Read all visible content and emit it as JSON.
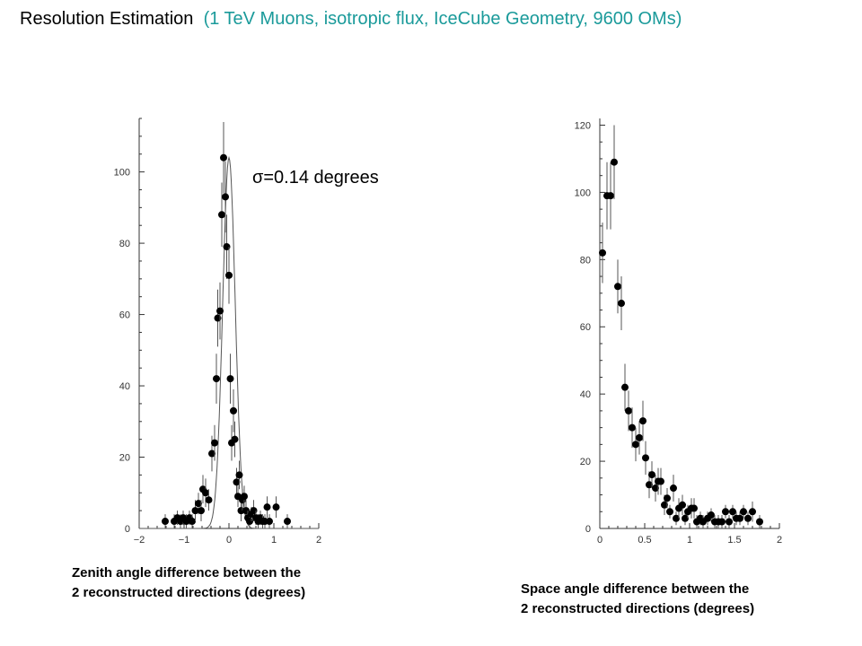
{
  "title": {
    "main": "Resolution Estimation",
    "sub": "(1 TeV Muons, isotropic flux, IceCube Geometry, 9600 OMs)"
  },
  "annotation": "σ=0.14 degrees",
  "captions": {
    "left_line1": "Zenith angle difference between the",
    "left_line2": "2 reconstructed directions (degrees)",
    "right_line1": "Space angle difference between the",
    "right_line2": "2 reconstructed directions (degrees)"
  },
  "colors": {
    "subtitle": "#1a9a9a",
    "points": "#000000",
    "axes": "#333333"
  },
  "chart_data": [
    {
      "type": "scatter",
      "name": "zenith",
      "xlim": [
        -2,
        2
      ],
      "ylim": [
        0,
        115
      ],
      "xticks": [
        -2,
        -1,
        0,
        1,
        2
      ],
      "yticks": [
        0,
        20,
        40,
        60,
        80,
        100
      ],
      "xtick_labels": [
        "−2",
        "−1",
        "0",
        "1",
        "2"
      ],
      "ytick_labels": [
        "0",
        "20",
        "40",
        "60",
        "80",
        "100"
      ],
      "error_bars": true,
      "fit_curve": true,
      "x": [
        -1.42,
        -1.22,
        -1.15,
        -1.08,
        -1.02,
        -0.95,
        -0.88,
        -0.82,
        -0.75,
        -0.68,
        -0.62,
        -0.58,
        -0.52,
        -0.45,
        -0.38,
        -0.32,
        -0.28,
        -0.25,
        -0.2,
        -0.16,
        -0.12,
        -0.08,
        -0.05,
        0.0,
        0.03,
        0.06,
        0.1,
        0.13,
        0.17,
        0.2,
        0.23,
        0.27,
        0.3,
        0.34,
        0.38,
        0.42,
        0.46,
        0.5,
        0.55,
        0.6,
        0.65,
        0.7,
        0.75,
        0.8,
        0.85,
        0.9,
        1.05,
        1.3
      ],
      "y": [
        2,
        2,
        3,
        2,
        3,
        2,
        3,
        2,
        5,
        7,
        5,
        11,
        10,
        8,
        21,
        24,
        42,
        59,
        61,
        88,
        104,
        93,
        79,
        71,
        42,
        24,
        33,
        25,
        13,
        9,
        15,
        5,
        8,
        9,
        5,
        3,
        2,
        4,
        5,
        3,
        2,
        3,
        2,
        2,
        6,
        2,
        6,
        2
      ],
      "err": [
        2,
        2,
        2,
        2,
        2,
        2,
        2,
        2,
        3,
        3,
        3,
        4,
        4,
        3,
        5,
        5,
        7,
        8,
        8,
        9,
        10,
        10,
        9,
        8,
        7,
        5,
        6,
        5,
        4,
        3,
        4,
        3,
        3,
        3,
        3,
        2,
        2,
        2,
        3,
        2,
        2,
        2,
        2,
        2,
        3,
        2,
        3,
        2
      ],
      "fit": {
        "amplitude": 104,
        "center": 0.0,
        "sigma": 0.14
      }
    },
    {
      "type": "scatter",
      "name": "space",
      "xlim": [
        0,
        2
      ],
      "ylim": [
        0,
        122
      ],
      "xticks": [
        0,
        0.5,
        1,
        1.5,
        2
      ],
      "yticks": [
        0,
        20,
        40,
        60,
        80,
        100,
        120
      ],
      "xtick_labels": [
        "0",
        "0.5",
        "1",
        "1.5",
        "2"
      ],
      "ytick_labels": [
        "0",
        "20",
        "40",
        "60",
        "80",
        "100",
        "120"
      ],
      "error_bars": true,
      "x": [
        0.03,
        0.08,
        0.12,
        0.16,
        0.2,
        0.24,
        0.28,
        0.32,
        0.36,
        0.4,
        0.44,
        0.48,
        0.51,
        0.55,
        0.58,
        0.62,
        0.65,
        0.68,
        0.72,
        0.75,
        0.78,
        0.82,
        0.85,
        0.88,
        0.92,
        0.95,
        0.98,
        1.02,
        1.05,
        1.08,
        1.12,
        1.15,
        1.2,
        1.24,
        1.28,
        1.32,
        1.36,
        1.4,
        1.44,
        1.48,
        1.52,
        1.56,
        1.6,
        1.65,
        1.7,
        1.78
      ],
      "y": [
        82,
        99,
        99,
        109,
        72,
        67,
        42,
        35,
        30,
        25,
        27,
        32,
        21,
        13,
        16,
        12,
        14,
        14,
        7,
        9,
        5,
        12,
        3,
        6,
        7,
        3,
        5,
        6,
        6,
        2,
        3,
        2,
        3,
        4,
        2,
        2,
        2,
        5,
        2,
        5,
        3,
        3,
        5,
        3,
        5,
        2
      ],
      "err": [
        9,
        10,
        10,
        11,
        8,
        8,
        7,
        6,
        6,
        5,
        5,
        6,
        5,
        4,
        4,
        4,
        4,
        4,
        3,
        3,
        2,
        4,
        2,
        3,
        3,
        2,
        2,
        3,
        3,
        2,
        2,
        2,
        2,
        2,
        2,
        2,
        2,
        2,
        2,
        2,
        2,
        2,
        2,
        2,
        3,
        2
      ]
    }
  ]
}
